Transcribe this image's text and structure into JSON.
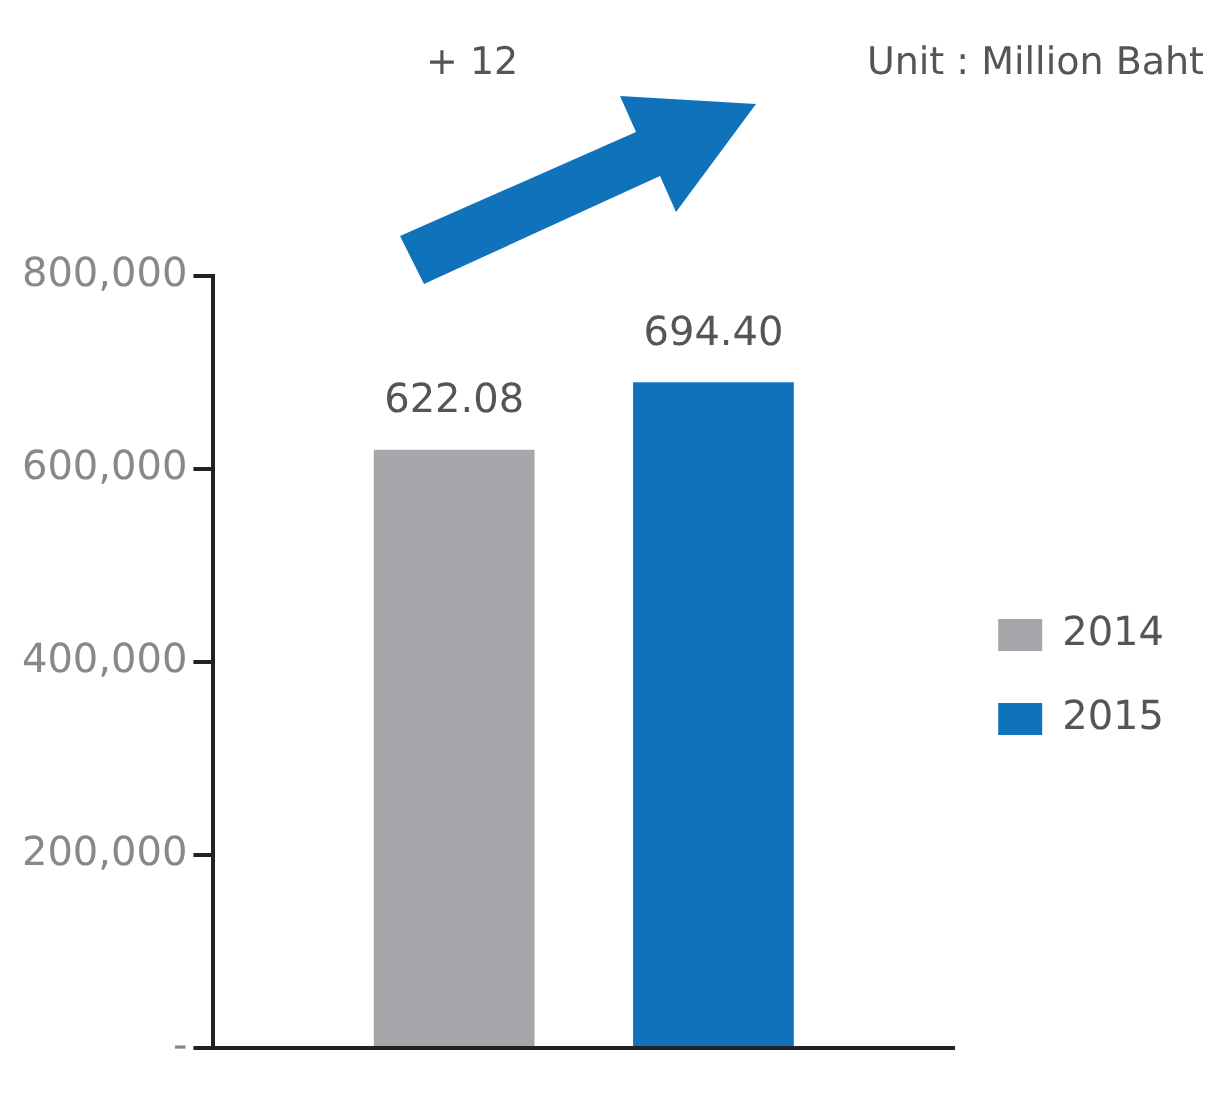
{
  "chart_data": {
    "type": "bar",
    "categories": [
      null
    ],
    "series": [
      {
        "name": "2014",
        "color": "#a6a7aa",
        "values": [
          620000
        ]
      },
      {
        "name": "2015",
        "color": "#1172bc",
        "values": [
          690000
        ]
      }
    ],
    "ylim": [
      0,
      800000
    ],
    "yticks": [
      {
        "value": 0,
        "label": "-"
      },
      {
        "value": 200000,
        "label": "200,000"
      },
      {
        "value": 400000,
        "label": "400,000"
      },
      {
        "value": 600000,
        "label": "600,000"
      },
      {
        "value": 800000,
        "label": "800,000"
      }
    ],
    "grid": false,
    "legend": "right",
    "annotations": [
      "+ 12",
      "Unit : Million Baht",
      "622.08",
      "694.40"
    ]
  }
}
